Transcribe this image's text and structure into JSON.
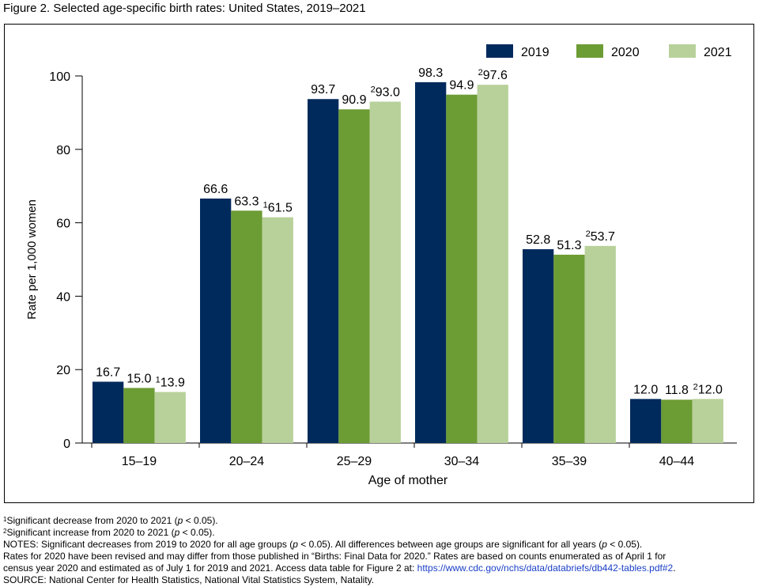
{
  "figure_title": "Figure 2. Selected age-specific birth rates: United States, 2019–2021",
  "chart_data": {
    "type": "bar",
    "title": "Figure 2. Selected age-specific birth rates: United States, 2019–2021",
    "xlabel": "Age of mother",
    "ylabel": "Rate per 1,000 women",
    "ylim": [
      0,
      100
    ],
    "yticks": [
      0,
      20,
      40,
      60,
      80,
      100
    ],
    "grid": false,
    "legend_position": "top-right",
    "categories": [
      "15–19",
      "20–24",
      "25–29",
      "30–34",
      "35–39",
      "40–44"
    ],
    "series": [
      {
        "name": "2019",
        "color": "#002a5c",
        "values": [
          16.7,
          66.6,
          93.7,
          98.3,
          52.8,
          12.0
        ]
      },
      {
        "name": "2020",
        "color": "#6c9c34",
        "values": [
          15.0,
          63.3,
          90.9,
          94.9,
          51.3,
          11.8
        ]
      },
      {
        "name": "2021",
        "color": "#b8d19a",
        "values": [
          13.9,
          61.5,
          93.0,
          97.6,
          53.7,
          12.0
        ],
        "value_labels": [
          "13.9",
          "61.5",
          "93.0",
          "97.6",
          "53.7",
          "12.0"
        ],
        "superscripts": [
          "1",
          "1",
          "2",
          "2",
          "2",
          "2"
        ]
      }
    ],
    "value_labels": [
      [
        "16.7",
        "66.6",
        "93.7",
        "98.3",
        "52.8",
        "12.0"
      ],
      [
        "15.0",
        "63.3",
        "90.9",
        "94.9",
        "51.3",
        "11.8"
      ],
      [
        "13.9",
        "61.5",
        "93.0",
        "97.6",
        "53.7",
        "12.0"
      ]
    ]
  },
  "footnotes": {
    "fn1_mark": "1",
    "fn1_text_a": "Significant decrease from 2020 to 2021 (",
    "fn1_p": "p",
    "fn1_text_b": " < 0.05).",
    "fn2_mark": "2",
    "fn2_text_a": "Significant increase from 2020 to 2021 (",
    "fn2_p": "p",
    "fn2_text_b": " < 0.05).",
    "notes_a": "NOTES: Significant decreases from 2019 to 2020 for all age groups (",
    "notes_p1": "p",
    "notes_b": " < 0.05). All differences between age groups are significant for all years (",
    "notes_p2": "p",
    "notes_c": " < 0.05).",
    "notes_line2": "Rates for 2020 have been revised and may differ from those published in “Births: Final Data for 2020.” Rates are based on counts enumerated as of April 1 for",
    "notes_line3": "census year 2020 and estimated as of July 1 for 2019 and 2021. Access data table for Figure 2 at: ",
    "link": "https://www.cdc.gov/nchs/data/databriefs/db442-tables.pdf#2",
    "link_after": ".",
    "source": "SOURCE: National Center for Health Statistics, National Vital Statistics System, Natality."
  }
}
